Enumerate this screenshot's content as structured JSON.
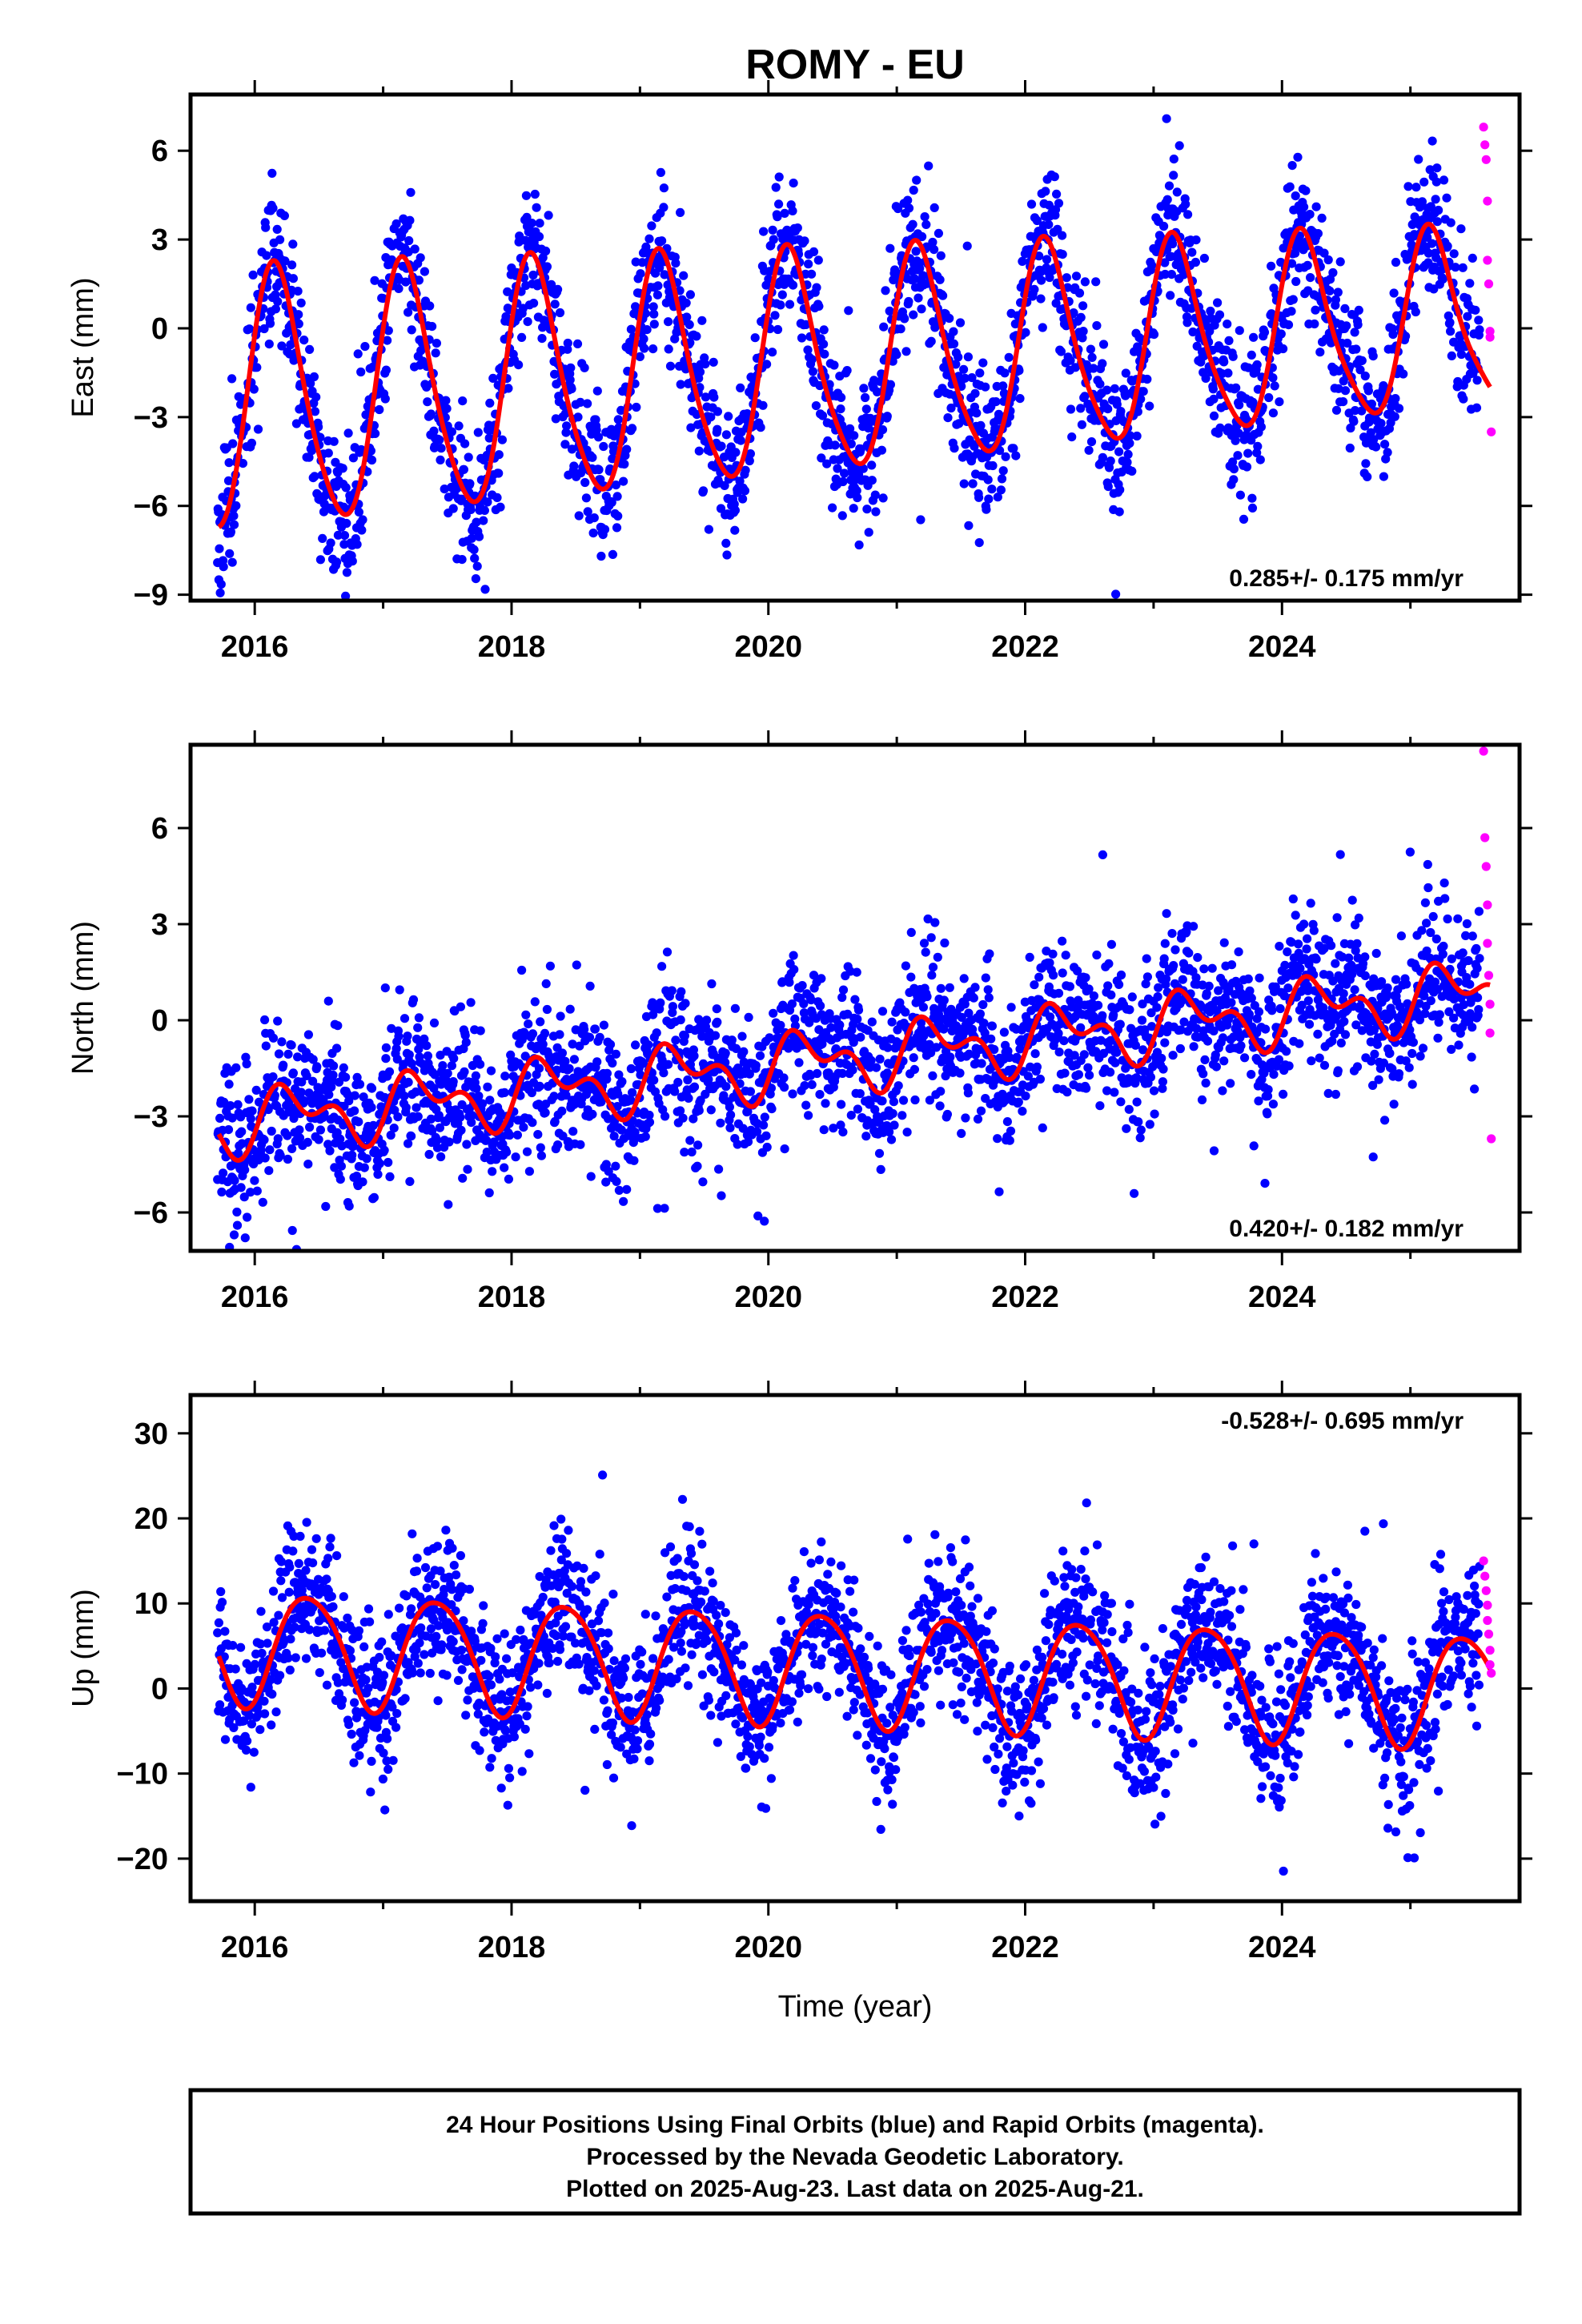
{
  "title": "ROMY - EU",
  "xlabel": "Time (year)",
  "footer": {
    "line1": "24 Hour Positions Using Final Orbits (blue) and Rapid Orbits (magenta).",
    "line2": "Processed by the Nevada Geodetic Laboratory.",
    "line3": "Plotted on 2025-Aug-23. Last data on 2025-Aug-21."
  },
  "colors": {
    "final": "#0000ff",
    "rapid": "#ff00ff",
    "model": "#ff0000",
    "axis": "#000000"
  },
  "chart_data": [
    {
      "type": "scatter",
      "title": "",
      "ylabel": "East (mm)",
      "xlabel": "",
      "xlim": [
        2015.5,
        2025.85
      ],
      "ylim": [
        -9.2,
        7.9
      ],
      "xticks": [
        2016,
        2018,
        2020,
        2022,
        2024
      ],
      "yticks": [
        -9,
        -6,
        -3,
        0,
        3,
        6
      ],
      "rate_label": "0.285+/- 0.175 mm/yr",
      "model": {
        "offset": -1.35,
        "trend": 0.285,
        "amp1": 3.75,
        "phase1": 0.17,
        "amp2": 0.55,
        "phase2": 0.1,
        "amp_growth": -0.04
      },
      "scatter": {
        "sigma": 1.25,
        "seed": 11
      },
      "series": [
        {
          "name": "Final Orbits",
          "x": [
            2015.72,
            2016.45,
            2016.85,
            2017.35,
            2017.82,
            2018.37,
            2018.85,
            2019.38,
            2019.85,
            2020.37,
            2020.85,
            2021.38,
            2021.85,
            2022.38,
            2022.85,
            2023.37,
            2023.85,
            2024.38,
            2024.85,
            2025.35
          ],
          "y": [
            -4.0,
            2.4,
            -4.9,
            2.6,
            -4.5,
            2.9,
            -4.2,
            3.1,
            -3.9,
            3.5,
            -3.7,
            3.8,
            -3.4,
            4.1,
            -3.1,
            4.4,
            -2.8,
            4.6,
            -2.5,
            4.9
          ]
        },
        {
          "name": "Rapid Orbits",
          "x": [
            2025.57,
            2025.58,
            2025.59,
            2025.6,
            2025.6,
            2025.61,
            2025.62,
            2025.62,
            2025.63
          ],
          "y": [
            6.8,
            6.2,
            5.7,
            4.3,
            2.3,
            1.5,
            -0.1,
            -0.3,
            -3.5
          ]
        }
      ]
    },
    {
      "type": "scatter",
      "title": "",
      "ylabel": "North (mm)",
      "xlabel": "",
      "xlim": [
        2015.5,
        2025.85
      ],
      "ylim": [
        -7.2,
        8.6
      ],
      "xticks": [
        2016,
        2018,
        2020,
        2022,
        2024
      ],
      "yticks": [
        -6,
        -3,
        0,
        3,
        6
      ],
      "rate_label": "0.420+/- 0.182 mm/yr",
      "model": {
        "offset": -1.45,
        "trend": 0.42,
        "amp1": 0.75,
        "phase1": 0.3,
        "amp2": 0.55,
        "phase2": 0.15,
        "amp_growth": 0.0
      },
      "scatter": {
        "sigma": 1.15,
        "seed": 23
      },
      "series": [
        {
          "name": "Final Orbits",
          "x": [
            2015.72,
            2016.5,
            2017.0,
            2017.5,
            2018.0,
            2018.5,
            2019.0,
            2019.5,
            2020.0,
            2020.5,
            2021.0,
            2021.5,
            2022.0,
            2022.5,
            2023.0,
            2023.5,
            2024.0,
            2024.5,
            2025.0,
            2025.5
          ],
          "y": [
            -2.8,
            -0.6,
            -2.4,
            -0.3,
            -1.9,
            0.3,
            -1.0,
            0.6,
            -0.6,
            1.0,
            -0.2,
            1.5,
            0.3,
            1.9,
            0.7,
            2.3,
            1.1,
            2.8,
            1.3,
            3.0
          ]
        },
        {
          "name": "Rapid Orbits",
          "x": [
            2025.57,
            2025.58,
            2025.59,
            2025.6,
            2025.6,
            2025.61,
            2025.62,
            2025.62,
            2025.63
          ],
          "y": [
            8.4,
            5.7,
            4.8,
            3.6,
            2.4,
            1.4,
            0.5,
            -0.4,
            -3.7
          ]
        }
      ]
    },
    {
      "type": "scatter",
      "title": "",
      "ylabel": "Up (mm)",
      "xlabel": "Time (year)",
      "xlim": [
        2015.5,
        2025.85
      ],
      "ylim": [
        -25.0,
        34.5
      ],
      "xticks": [
        2016,
        2018,
        2020,
        2022,
        2024
      ],
      "yticks": [
        -20,
        -10,
        0,
        10,
        20,
        30
      ],
      "rate_label": "-0.528+/- 0.695 mm/yr",
      "model": {
        "offset": 2.8,
        "trend": -0.528,
        "amp1": 6.6,
        "phase1": 0.42,
        "amp2": 0.8,
        "phase2": 0.2,
        "amp_growth": 0.0
      },
      "scatter": {
        "sigma": 4.3,
        "seed": 37
      },
      "series": [
        {
          "name": "Final Orbits",
          "x": [
            2015.72,
            2016.05,
            2016.67,
            2017.05,
            2017.67,
            2018.05,
            2018.67,
            2019.05,
            2019.67,
            2020.05,
            2020.67,
            2021.05,
            2021.67,
            2022.05,
            2022.67,
            2023.05,
            2023.67,
            2024.05,
            2024.67,
            2025.05,
            2025.55
          ],
          "y": [
            9.2,
            -3.0,
            9.8,
            -3.6,
            9.2,
            -4.2,
            8.7,
            -4.8,
            8.1,
            -5.3,
            7.6,
            -5.9,
            7.0,
            -6.4,
            6.5,
            -6.9,
            6.0,
            -7.5,
            5.4,
            -8.0,
            4.5
          ]
        },
        {
          "name": "Rapid Orbits",
          "x": [
            2025.57,
            2025.58,
            2025.59,
            2025.6,
            2025.6,
            2025.61,
            2025.62,
            2025.62,
            2025.63
          ],
          "y": [
            15.0,
            13.2,
            11.5,
            9.8,
            8.0,
            6.4,
            4.5,
            2.8,
            1.8
          ]
        }
      ]
    }
  ]
}
